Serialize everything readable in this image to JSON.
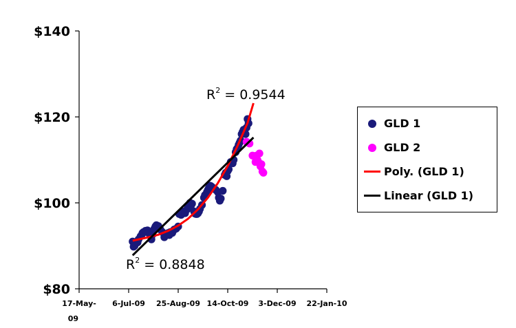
{
  "chart_data": {
    "type": "scatter",
    "title": "",
    "xlabel": "",
    "ylabel": "",
    "x_tick_labels": [
      "17-May-09",
      "6-Jul-09",
      "25-Aug-09",
      "14-Oct-09",
      "3-Dec-09",
      "22-Jan-10"
    ],
    "x_tick_values": [
      0,
      50,
      100,
      150,
      200,
      250
    ],
    "xlim": [
      0,
      250
    ],
    "y_tick_labels": [
      "$80",
      "$100",
      "$120",
      "$140"
    ],
    "y_tick_values": [
      80,
      100,
      120,
      140
    ],
    "ylim": [
      80,
      140
    ],
    "grid": false,
    "legend_position": "right",
    "series": [
      {
        "name": "GLD 1",
        "kind": "scatter",
        "color": "#1a1a7a",
        "points": [
          [
            54,
            91
          ],
          [
            55,
            89.8
          ],
          [
            56,
            90
          ],
          [
            57,
            90.5
          ],
          [
            59,
            90.8
          ],
          [
            60,
            91.5
          ],
          [
            62,
            92.2
          ],
          [
            63,
            92.5
          ],
          [
            64,
            93
          ],
          [
            65,
            93.2
          ],
          [
            67,
            93.5
          ],
          [
            68,
            93.2
          ],
          [
            69,
            93.6
          ],
          [
            70,
            93
          ],
          [
            71,
            93.3
          ],
          [
            72,
            92.8
          ],
          [
            73,
            91.5
          ],
          [
            74,
            92.6
          ],
          [
            75,
            93.5
          ],
          [
            76,
            94
          ],
          [
            77,
            94.5
          ],
          [
            78,
            94.8
          ],
          [
            80,
            94.6
          ],
          [
            81,
            94.2
          ],
          [
            82,
            93.8
          ],
          [
            84,
            93.2
          ],
          [
            86,
            92
          ],
          [
            88,
            92.7
          ],
          [
            90,
            93
          ],
          [
            91,
            92.5
          ],
          [
            92,
            93.2
          ],
          [
            94,
            93
          ],
          [
            95,
            93.5
          ],
          [
            96,
            93.8
          ],
          [
            98,
            94
          ],
          [
            100,
            94.5
          ],
          [
            101,
            97.4
          ],
          [
            103,
            97.2
          ],
          [
            104,
            97.6
          ],
          [
            106,
            98
          ],
          [
            107,
            97.6
          ],
          [
            109,
            98.5
          ],
          [
            110,
            99.2
          ],
          [
            111,
            99.5
          ],
          [
            112,
            100
          ],
          [
            113,
            99.4
          ],
          [
            114,
            99.8
          ],
          [
            116,
            98
          ],
          [
            117,
            97.5
          ],
          [
            118,
            97.4
          ],
          [
            119,
            97.4
          ],
          [
            120,
            97.6
          ],
          [
            121,
            98
          ],
          [
            122,
            98.6
          ],
          [
            124,
            99.5
          ],
          [
            126,
            101.2
          ],
          [
            127,
            101.8
          ],
          [
            129,
            102.5
          ],
          [
            130,
            103
          ],
          [
            131,
            103.5
          ],
          [
            132,
            104
          ],
          [
            133,
            103.9
          ],
          [
            134,
            103.7
          ],
          [
            136,
            103.4
          ],
          [
            138,
            103
          ],
          [
            140,
            102.5
          ],
          [
            141,
            101.2
          ],
          [
            142,
            100.5
          ],
          [
            143,
            101
          ],
          [
            145,
            102.8
          ],
          [
            147,
            106.5
          ],
          [
            148,
            107
          ],
          [
            149,
            106.2
          ],
          [
            150,
            107.4
          ],
          [
            151,
            107.8
          ],
          [
            153,
            109.5
          ],
          [
            155,
            109.2
          ],
          [
            156,
            110
          ],
          [
            158,
            111.8
          ],
          [
            159,
            112.5
          ],
          [
            160,
            112.8
          ],
          [
            161,
            113.5
          ],
          [
            162,
            114
          ],
          [
            163,
            114.5
          ],
          [
            164,
            116
          ],
          [
            165,
            116.5
          ],
          [
            166,
            117
          ],
          [
            167,
            116.4
          ],
          [
            168,
            116
          ],
          [
            169,
            117.5
          ],
          [
            170,
            119.5
          ],
          [
            171,
            118.5
          ]
        ]
      },
      {
        "name": "GLD 2",
        "kind": "scatter",
        "color": "#ff00ff",
        "points": [
          [
            169,
            114.2
          ],
          [
            172,
            113.8
          ],
          [
            175,
            111
          ],
          [
            177,
            110.8
          ],
          [
            178,
            109.5
          ],
          [
            179,
            111
          ],
          [
            180,
            110
          ],
          [
            181,
            109.5
          ],
          [
            182,
            111.5
          ],
          [
            183,
            108.5
          ],
          [
            184,
            109
          ],
          [
            185,
            107.3
          ],
          [
            186,
            107
          ]
        ]
      },
      {
        "name": "Poly. (GLD 1)",
        "kind": "line",
        "color": "#ff0000",
        "points": [
          [
            54,
            91.2
          ],
          [
            60,
            91.5
          ],
          [
            70,
            92
          ],
          [
            80,
            92.6
          ],
          [
            90,
            93.5
          ],
          [
            100,
            94.7
          ],
          [
            110,
            96.3
          ],
          [
            120,
            98.5
          ],
          [
            130,
            101.2
          ],
          [
            140,
            104.6
          ],
          [
            150,
            108.6
          ],
          [
            160,
            113.3
          ],
          [
            170,
            118.6
          ],
          [
            176,
            123.2
          ]
        ]
      },
      {
        "name": "Linear (GLD 1)",
        "kind": "line",
        "color": "#000000",
        "points": [
          [
            54,
            87.8
          ],
          [
            176,
            115.2
          ]
        ]
      }
    ],
    "annotations": [
      {
        "text": "R",
        "sup": "2",
        "value": " = 0.9544"
      },
      {
        "text": "R",
        "sup": "2",
        "value": " = 0.8848"
      }
    ]
  }
}
